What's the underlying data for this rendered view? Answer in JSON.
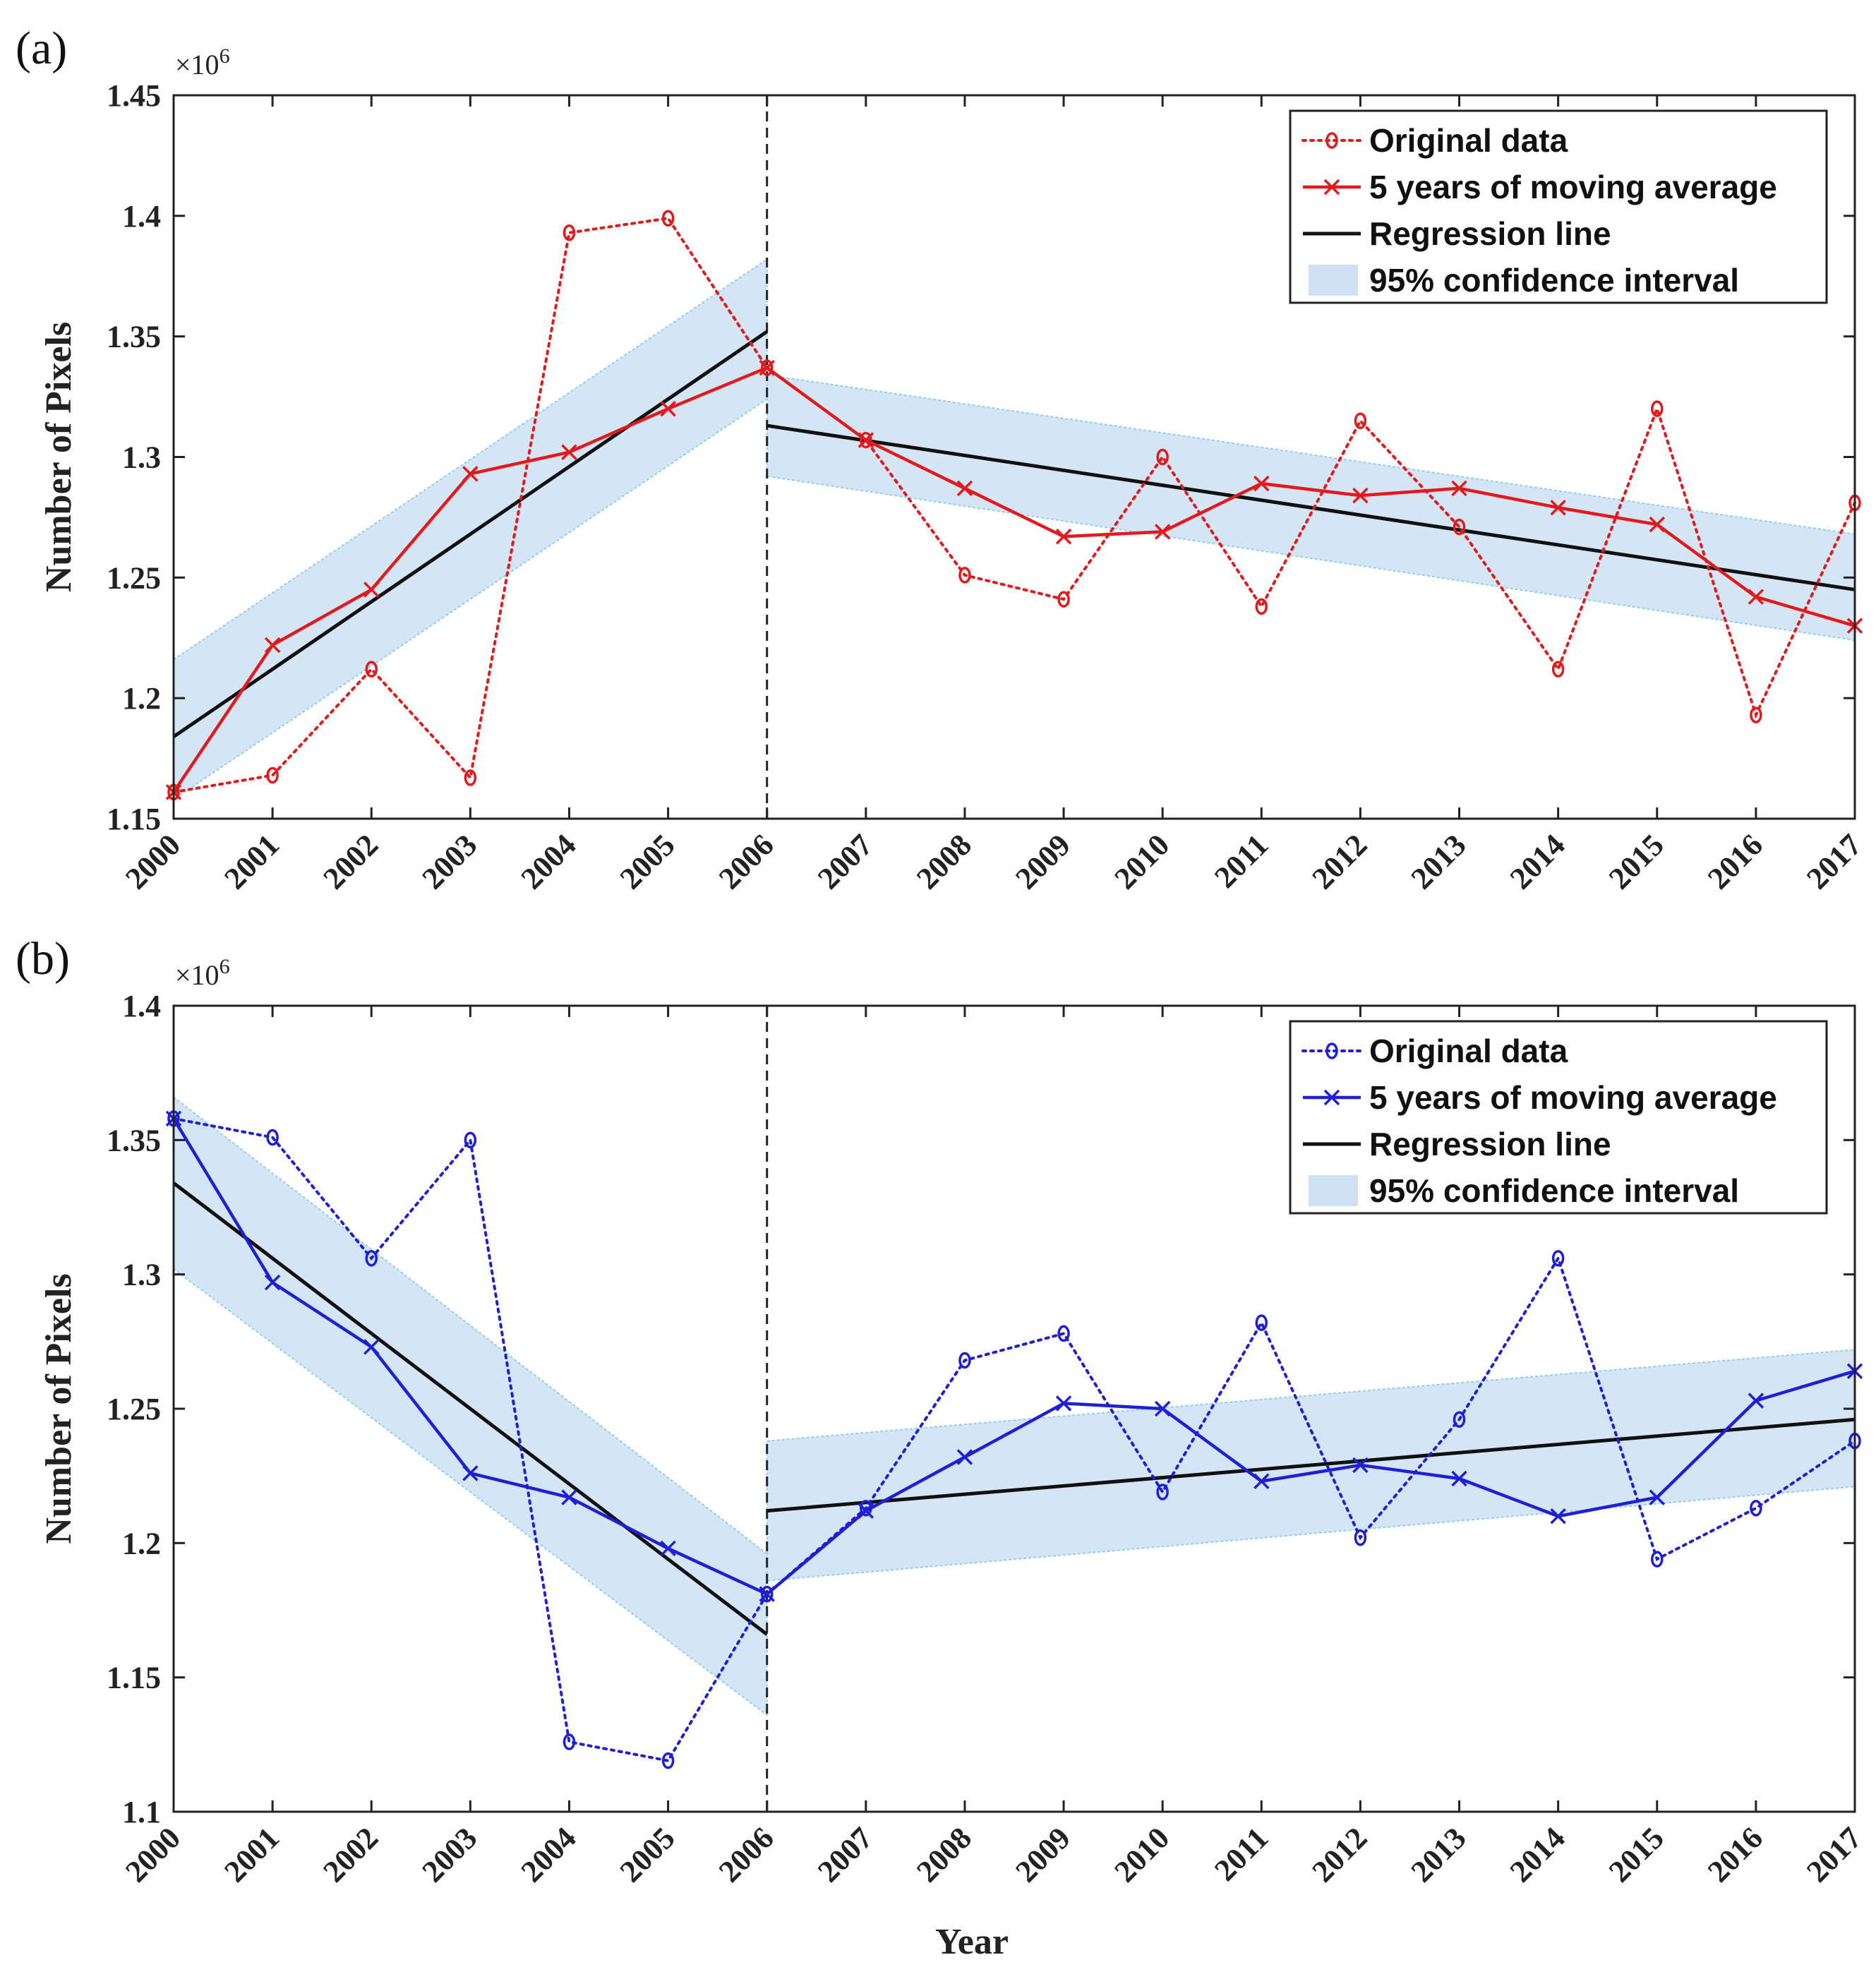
{
  "chart_data": [
    {
      "type": "line",
      "panel_label": "(a)",
      "xlabel": "",
      "ylabel": "Number of Pixels",
      "y_exponent_base": "×10",
      "y_exponent_power": "6",
      "x": [
        2000,
        2001,
        2002,
        2003,
        2004,
        2005,
        2006,
        2007,
        2008,
        2009,
        2010,
        2011,
        2012,
        2013,
        2014,
        2015,
        2016,
        2017
      ],
      "x_tick_labels": [
        "2000",
        "2001",
        "2002",
        "2003",
        "2004",
        "2005",
        "2006",
        "2007",
        "2008",
        "2009",
        "2010",
        "2011",
        "2012",
        "2013",
        "2014",
        "2015",
        "2016",
        "2017"
      ],
      "ylim": [
        1.15,
        1.45
      ],
      "y_ticks": [
        1.15,
        1.2,
        1.25,
        1.3,
        1.35,
        1.4,
        1.45
      ],
      "y_tick_labels": [
        "1.15",
        "1.2",
        "1.25",
        "1.3",
        "1.35",
        "1.4",
        "1.45"
      ],
      "breakpoint_year": 2006,
      "color": "#e31a1c",
      "legend_position": "top-right",
      "series": [
        {
          "name": "Original data",
          "style": "dotted-circle",
          "values": [
            1.161,
            1.168,
            1.212,
            1.167,
            1.393,
            1.399,
            1.337,
            1.307,
            1.251,
            1.241,
            1.3,
            1.238,
            1.315,
            1.271,
            1.212,
            1.32,
            1.193,
            1.281
          ]
        },
        {
          "name": "5 years of moving average",
          "style": "solid-cross",
          "values": [
            1.161,
            1.222,
            1.245,
            1.293,
            1.302,
            1.32,
            1.337,
            1.307,
            1.287,
            1.267,
            1.269,
            1.289,
            1.284,
            1.287,
            1.279,
            1.272,
            1.242,
            1.23
          ]
        },
        {
          "name": "Regression line",
          "style": "solid-black",
          "segments": [
            {
              "x": [
                2000,
                2006
              ],
              "values": [
                1.184,
                1.352
              ]
            },
            {
              "x": [
                2006,
                2017
              ],
              "values": [
                1.313,
                1.245
              ]
            }
          ]
        },
        {
          "name": "95% confidence interval",
          "style": "band",
          "segments": [
            {
              "x": [
                2000,
                2006
              ],
              "lower": [
                1.158,
                1.324
              ],
              "upper": [
                1.216,
                1.382
              ]
            },
            {
              "x": [
                2006,
                2017
              ],
              "lower": [
                1.292,
                1.224
              ],
              "upper": [
                1.334,
                1.268
              ]
            }
          ]
        }
      ]
    },
    {
      "type": "line",
      "panel_label": "(b)",
      "xlabel": "Year",
      "ylabel": "Number of Pixels",
      "y_exponent_base": "×10",
      "y_exponent_power": "6",
      "x": [
        2000,
        2001,
        2002,
        2003,
        2004,
        2005,
        2006,
        2007,
        2008,
        2009,
        2010,
        2011,
        2012,
        2013,
        2014,
        2015,
        2016,
        2017
      ],
      "x_tick_labels": [
        "2000",
        "2001",
        "2002",
        "2003",
        "2004",
        "2005",
        "2006",
        "2007",
        "2008",
        "2009",
        "2010",
        "2011",
        "2012",
        "2013",
        "2014",
        "2015",
        "2016",
        "2017"
      ],
      "ylim": [
        1.1,
        1.4
      ],
      "y_ticks": [
        1.1,
        1.15,
        1.2,
        1.25,
        1.3,
        1.35,
        1.4
      ],
      "y_tick_labels": [
        "1.1",
        "1.15",
        "1.2",
        "1.25",
        "1.3",
        "1.35",
        "1.4"
      ],
      "breakpoint_year": 2006,
      "color": "#1f1fd6",
      "legend_position": "top-right",
      "series": [
        {
          "name": "Original data",
          "style": "dotted-circle",
          "values": [
            1.358,
            1.351,
            1.306,
            1.35,
            1.126,
            1.119,
            1.181,
            1.213,
            1.268,
            1.278,
            1.219,
            1.282,
            1.202,
            1.246,
            1.306,
            1.194,
            1.213,
            1.238
          ]
        },
        {
          "name": "5 years of moving average",
          "style": "solid-cross",
          "values": [
            1.358,
            1.297,
            1.273,
            1.226,
            1.217,
            1.198,
            1.181,
            1.212,
            1.232,
            1.252,
            1.25,
            1.223,
            1.229,
            1.224,
            1.21,
            1.217,
            1.253,
            1.264
          ]
        },
        {
          "name": "Regression line",
          "style": "solid-black",
          "segments": [
            {
              "x": [
                2000,
                2006
              ],
              "values": [
                1.334,
                1.166
              ]
            },
            {
              "x": [
                2006,
                2017
              ],
              "values": [
                1.212,
                1.246
              ]
            }
          ]
        },
        {
          "name": "95% confidence interval",
          "style": "band",
          "segments": [
            {
              "x": [
                2000,
                2006
              ],
              "lower": [
                1.302,
                1.136
              ],
              "upper": [
                1.366,
                1.196
              ]
            },
            {
              "x": [
                2006,
                2017
              ],
              "lower": [
                1.186,
                1.221
              ],
              "upper": [
                1.238,
                1.272
              ]
            }
          ]
        }
      ]
    }
  ]
}
